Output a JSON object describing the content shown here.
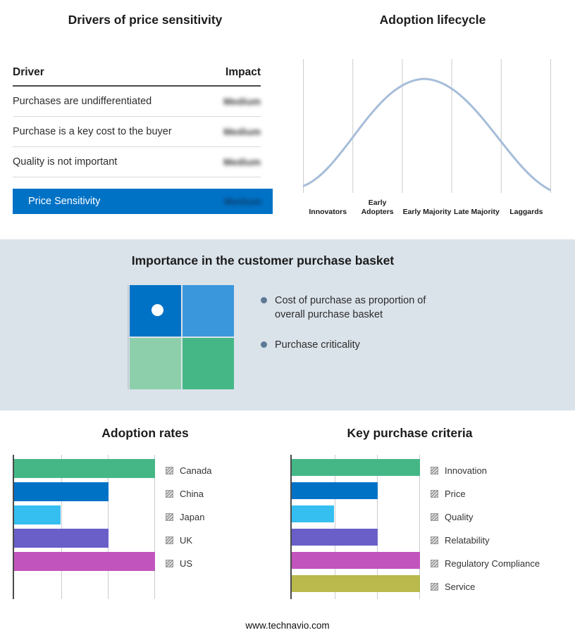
{
  "colors": {
    "band": "#DAE2EA",
    "accent-blue": "#0072C6",
    "curve": "#A6BDD9",
    "quad-tl": "#0072C6",
    "quad-tr": "#3B97DC",
    "quad-bl": "#8CCFAA",
    "quad-br": "#45B786"
  },
  "drivers": {
    "title": "Drivers of price sensitivity",
    "header": {
      "driver": "Driver",
      "impact": "Impact"
    },
    "rows": [
      {
        "driver": "Purchases are undifferentiated",
        "impact": "Medium"
      },
      {
        "driver": "Purchase is a key cost to the buyer",
        "impact": "Medium"
      },
      {
        "driver": "Quality is not important",
        "impact": "Medium"
      }
    ],
    "highlight": {
      "driver": "Price Sensitivity",
      "impact": "Medium"
    }
  },
  "lifecycle": {
    "title": "Adoption lifecycle",
    "stages": [
      "Innovators",
      "Early Adopters",
      "Early Majority",
      "Late Majority",
      "Laggards"
    ]
  },
  "importance": {
    "title": "Importance in the customer purchase basket",
    "bullets": [
      "Cost of purchase as proportion of overall purchase basket",
      "Purchase criticality"
    ]
  },
  "footer": "www.technavio.com",
  "chart_data": [
    {
      "type": "bar",
      "title": "Adoption rates",
      "orientation": "horizontal",
      "categories": [
        "Canada",
        "China",
        "Japan",
        "UK",
        "US"
      ],
      "values": [
        100,
        67,
        33,
        67,
        100
      ],
      "colors": [
        "#45B786",
        "#0072C6",
        "#35BEF0",
        "#6A5FC8",
        "#C155BD"
      ],
      "xlim": [
        0,
        100
      ],
      "grid": true,
      "legend_position": "right",
      "note": "axis unlabeled; values estimated from gridlines"
    },
    {
      "type": "bar",
      "title": "Key purchase criteria",
      "orientation": "horizontal",
      "categories": [
        "Innovation",
        "Price",
        "Quality",
        "Relatability",
        "Regulatory Compliance",
        "Service"
      ],
      "values": [
        100,
        67,
        33,
        67,
        100,
        100
      ],
      "colors": [
        "#45B786",
        "#0072C6",
        "#35BEF0",
        "#6A5FC8",
        "#C155BD",
        "#B9B94C"
      ],
      "xlim": [
        0,
        100
      ],
      "grid": true,
      "legend_position": "right",
      "note": "axis unlabeled; values estimated from gridlines"
    },
    {
      "type": "line",
      "title": "Adoption lifecycle",
      "categories": [
        "Innovators",
        "Early Adopters",
        "Early Majority",
        "Late Majority",
        "Laggards"
      ],
      "description": "bell-shaped adoption curve rising from Innovators, peaking at Early Majority, falling to Laggards",
      "legend_position": "none"
    }
  ]
}
